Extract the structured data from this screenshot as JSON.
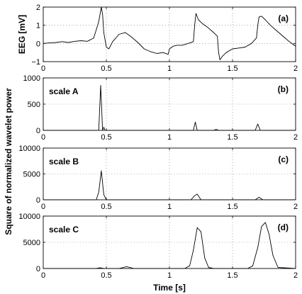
{
  "figure": {
    "xlabel": "Time [s]",
    "shared_ylabel": "Square of normalized wavelet power"
  },
  "chart_data": [
    {
      "type": "line",
      "panel_label": "(a)",
      "scale_label": "",
      "ylabel": "EEG [mV]",
      "xlim": [
        0,
        2
      ],
      "ylim": [
        -1,
        2
      ],
      "xticks": [
        0,
        0.5,
        1,
        1.5,
        2
      ],
      "xtick_labels": [
        "0",
        "0.5",
        "1",
        "1.5",
        "2"
      ],
      "yticks": [
        -1,
        0,
        1,
        2
      ],
      "ytick_labels": [
        "−1",
        "0",
        "1",
        "2"
      ],
      "grid": true,
      "x": [
        0,
        0.05,
        0.1,
        0.15,
        0.2,
        0.25,
        0.3,
        0.35,
        0.4,
        0.44,
        0.46,
        0.47,
        0.48,
        0.5,
        0.52,
        0.55,
        0.6,
        0.65,
        0.7,
        0.75,
        0.8,
        0.85,
        0.9,
        0.95,
        0.99,
        1.0,
        1.03,
        1.06,
        1.1,
        1.15,
        1.19,
        1.2,
        1.21,
        1.23,
        1.26,
        1.3,
        1.35,
        1.38,
        1.39,
        1.4,
        1.42,
        1.45,
        1.5,
        1.55,
        1.6,
        1.65,
        1.69,
        1.7,
        1.71,
        1.73,
        1.76,
        1.8,
        1.85,
        1.9,
        1.95,
        2.0
      ],
      "series": [
        {
          "values": [
            0.0,
            0.03,
            0.05,
            0.1,
            0.05,
            0.12,
            0.15,
            0.12,
            0.3,
            1.2,
            2.0,
            1.6,
            0.6,
            -0.2,
            -0.3,
            0.1,
            0.5,
            0.6,
            0.35,
            0.05,
            -0.3,
            -0.45,
            -0.55,
            -0.5,
            -0.6,
            -0.3,
            -0.15,
            -0.1,
            -0.1,
            0.0,
            0.1,
            1.0,
            1.65,
            1.3,
            1.1,
            0.9,
            0.6,
            0.4,
            -0.5,
            -0.9,
            -0.7,
            -0.5,
            -0.3,
            -0.25,
            -0.2,
            0.0,
            0.3,
            1.0,
            1.45,
            1.5,
            1.3,
            1.0,
            0.7,
            0.4,
            0.1,
            -0.15
          ]
        }
      ]
    },
    {
      "type": "line",
      "panel_label": "(b)",
      "scale_label": "scale A",
      "ylabel": "",
      "xlim": [
        0,
        2
      ],
      "ylim": [
        0,
        1000
      ],
      "xticks": [
        0,
        0.5,
        1,
        1.5,
        2
      ],
      "xtick_labels": [
        "0",
        "0.5",
        "1",
        "1.5",
        "2"
      ],
      "yticks": [
        0,
        500,
        1000
      ],
      "ytick_labels": [
        "0",
        "500",
        "1000"
      ],
      "grid": true,
      "x": [
        0,
        0.42,
        0.44,
        0.455,
        0.47,
        0.48,
        0.49,
        0.5,
        1.19,
        1.205,
        1.22,
        1.35,
        1.37,
        1.39,
        1.68,
        1.7,
        1.72,
        2.0
      ],
      "series": [
        {
          "values": [
            0,
            0,
            0,
            860,
            0,
            60,
            0,
            0,
            0,
            160,
            0,
            0,
            20,
            0,
            0,
            120,
            0,
            0
          ]
        }
      ]
    },
    {
      "type": "line",
      "panel_label": "(c)",
      "scale_label": "scale B",
      "ylabel": "",
      "xlim": [
        0,
        2
      ],
      "ylim": [
        0,
        10000
      ],
      "xticks": [
        0,
        0.5,
        1,
        1.5,
        2
      ],
      "xtick_labels": [
        "0",
        "0.5",
        "1",
        "1.5",
        "2"
      ],
      "yticks": [
        0,
        5000,
        10000
      ],
      "ytick_labels": [
        "0",
        "5000",
        "10000"
      ],
      "grid": true,
      "x": [
        0,
        0.42,
        0.44,
        0.46,
        0.48,
        0.5,
        1.17,
        1.2,
        1.22,
        1.25,
        1.68,
        1.71,
        1.74,
        2.0
      ],
      "series": [
        {
          "values": [
            0,
            0,
            1500,
            5600,
            1000,
            0,
            0,
            800,
            1100,
            0,
            0,
            500,
            0,
            0
          ]
        }
      ]
    },
    {
      "type": "line",
      "panel_label": "(d)",
      "scale_label": "scale C",
      "ylabel": "",
      "xlim": [
        0,
        2
      ],
      "ylim": [
        0,
        10000
      ],
      "xticks": [
        0,
        0.5,
        1,
        1.5,
        2
      ],
      "xtick_labels": [
        "0",
        "0.5",
        "1",
        "1.5",
        "2"
      ],
      "yticks": [
        0,
        5000,
        10000
      ],
      "ytick_labels": [
        "0",
        "5000",
        "10000"
      ],
      "grid": true,
      "x": [
        0,
        0.42,
        0.45,
        0.48,
        0.6,
        0.66,
        0.72,
        1.12,
        1.16,
        1.19,
        1.22,
        1.25,
        1.28,
        1.31,
        1.35,
        1.62,
        1.66,
        1.7,
        1.73,
        1.76,
        1.79,
        1.82,
        1.86,
        2.0
      ],
      "series": [
        {
          "values": [
            0,
            0,
            150,
            0,
            0,
            350,
            0,
            0,
            500,
            3500,
            7800,
            7000,
            2000,
            200,
            0,
            0,
            500,
            4000,
            8000,
            8800,
            6500,
            2500,
            200,
            0
          ]
        }
      ]
    }
  ]
}
